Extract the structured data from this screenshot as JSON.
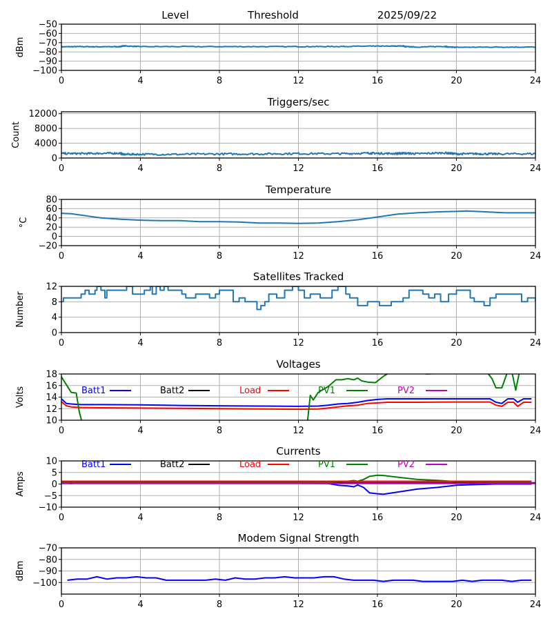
{
  "header": {
    "level_label": "Level",
    "threshold_label": "Threshold",
    "date": "2025/09/22"
  },
  "chart_data": [
    {
      "id": "level",
      "type": "line",
      "title": "",
      "ylabel": "dBm",
      "xlim": [
        0,
        24
      ],
      "ylim": [
        -100,
        -50
      ],
      "xticks": [
        0,
        4,
        8,
        12,
        16,
        20,
        24
      ],
      "yticks": [
        -100,
        -90,
        -80,
        -70,
        -60,
        -50
      ],
      "grid": true,
      "series": [
        {
          "name": "Level",
          "color": "#1f77b4",
          "noise": 0.4,
          "x": [
            0,
            1,
            2,
            3,
            3.1,
            4,
            8,
            12,
            14,
            15.5,
            16.5,
            17.3,
            17.4,
            18,
            19.4,
            19.6,
            20,
            22,
            24
          ],
          "y": [
            -74.5,
            -74.3,
            -74.5,
            -74.3,
            -73.5,
            -74.3,
            -74.3,
            -74.3,
            -74.2,
            -73.8,
            -73.8,
            -73.5,
            -74.3,
            -74.8,
            -74,
            -74.8,
            -75,
            -74.8,
            -74.8
          ]
        }
      ]
    },
    {
      "id": "triggers",
      "type": "line",
      "title": "Triggers/sec",
      "ylabel": "Count",
      "xlim": [
        0,
        24
      ],
      "ylim": [
        0,
        12500
      ],
      "xticks": [
        0,
        4,
        8,
        12,
        16,
        20,
        24
      ],
      "yticks": [
        0,
        4000,
        8000,
        12000
      ],
      "grid": true,
      "series": [
        {
          "name": "Triggers",
          "color": "#1f77b4",
          "noise": 250,
          "x": [
            0,
            1,
            2,
            3,
            3.1,
            4,
            6,
            8,
            10,
            12,
            14,
            15.5,
            16,
            17,
            17.3,
            18,
            19.4,
            20,
            21,
            22,
            24
          ],
          "y": [
            1200,
            1200,
            1250,
            1300,
            1000,
            1000,
            1000,
            1100,
            1100,
            1200,
            1150,
            1300,
            1250,
            1200,
            1300,
            1150,
            1400,
            1100,
            1150,
            1100,
            1150
          ]
        }
      ]
    },
    {
      "id": "temperature",
      "type": "line",
      "title": "Temperature",
      "ylabel": "°C",
      "xlim": [
        0,
        24
      ],
      "ylim": [
        -20,
        80
      ],
      "xticks": [
        0,
        4,
        8,
        12,
        16,
        20,
        24
      ],
      "yticks": [
        -20,
        0,
        20,
        40,
        60,
        80
      ],
      "grid": true,
      "series": [
        {
          "name": "Temperature",
          "color": "#1f77b4",
          "noise": 0,
          "x": [
            0,
            0.5,
            1,
            2,
            3,
            4,
            5,
            6,
            7,
            8,
            9,
            10,
            11,
            12,
            13,
            14,
            15,
            16,
            17,
            18,
            19,
            20,
            20.5,
            21,
            22,
            22.5,
            24
          ],
          "y": [
            50,
            49,
            46,
            40,
            37,
            35,
            34,
            34,
            32,
            32,
            31,
            29,
            29,
            28,
            29,
            32,
            36,
            42,
            48,
            51,
            53,
            54,
            55,
            54,
            52,
            51,
            51
          ]
        }
      ]
    },
    {
      "id": "satellites",
      "type": "line",
      "title": "Satellites Tracked",
      "ylabel": "Number",
      "xlim": [
        0,
        24
      ],
      "ylim": [
        0,
        12
      ],
      "xticks": [
        0,
        4,
        8,
        12,
        16,
        20,
        24
      ],
      "yticks": [
        0,
        4,
        8,
        12
      ],
      "grid": true,
      "step": true,
      "series": [
        {
          "name": "Satellites",
          "color": "#1f77b4",
          "noise": 0,
          "x": [
            0,
            0.1,
            0.9,
            1.0,
            1.2,
            1.4,
            1.7,
            1.8,
            2.0,
            2.2,
            2.3,
            3.1,
            3.3,
            3.6,
            4.2,
            4.5,
            4.6,
            4.8,
            5.0,
            5.2,
            5.4,
            6.1,
            6.3,
            6.8,
            7.5,
            7.8,
            8.0,
            8.6,
            8.7,
            9.0,
            9.3,
            9.8,
            9.9,
            10.1,
            10.3,
            10.5,
            10.9,
            11.3,
            11.7,
            12.0,
            12.3,
            12.6,
            13.1,
            13.7,
            14.0,
            14.4,
            14.6,
            15.0,
            15.5,
            15.9,
            16.1,
            16.7,
            17.3,
            17.6,
            18.0,
            18.3,
            18.6,
            18.9,
            19.2,
            19.6,
            20.0,
            20.7,
            20.9,
            21.4,
            21.7,
            22.0,
            23.3,
            23.6,
            24.0
          ],
          "y": [
            8,
            9,
            9,
            10,
            11,
            10,
            11,
            12,
            11,
            9,
            11,
            11,
            12,
            10,
            11,
            12,
            10,
            12,
            11,
            12,
            11,
            10,
            9,
            10,
            9,
            10,
            11,
            11,
            8,
            9,
            8,
            8,
            6,
            7,
            8,
            10,
            9,
            11,
            12,
            11,
            9,
            10,
            9,
            11,
            12,
            10,
            9,
            7,
            8,
            8,
            7,
            8,
            9,
            11,
            11,
            10,
            9,
            10,
            8,
            10,
            11,
            9,
            8,
            7,
            9,
            10,
            8,
            9,
            8
          ]
        }
      ]
    },
    {
      "id": "voltages",
      "type": "line",
      "title": "Voltages",
      "ylabel": "Volts",
      "xlim": [
        0,
        24
      ],
      "ylim": [
        10,
        18
      ],
      "xticks": [
        0,
        4,
        8,
        12,
        16,
        20,
        24
      ],
      "yticks": [
        10,
        12,
        14,
        16,
        18
      ],
      "grid": true,
      "legend": [
        {
          "name": "Batt1",
          "color": "#0000ff"
        },
        {
          "name": "Batt2",
          "color": "#000000"
        },
        {
          "name": "Load",
          "color": "#ff0000"
        },
        {
          "name": "PV1",
          "color": "#008000"
        },
        {
          "name": "PV2",
          "color": "#bf00bf"
        }
      ],
      "series": [
        {
          "name": "Batt1",
          "color": "#0000ff",
          "x": [
            0,
            0.25,
            0.5,
            1,
            2,
            4,
            6,
            8,
            10,
            12,
            13,
            13.5,
            14,
            14.5,
            15,
            15.5,
            16,
            16.5,
            18,
            20,
            21.7,
            22,
            22.3,
            22.6,
            22.9,
            23.1,
            23.4,
            23.8
          ],
          "y": [
            13.7,
            12.9,
            12.8,
            12.7,
            12.7,
            12.65,
            12.55,
            12.5,
            12.45,
            12.4,
            12.45,
            12.6,
            12.8,
            12.9,
            13.1,
            13.4,
            13.6,
            13.7,
            13.7,
            13.7,
            13.7,
            13.1,
            12.9,
            13.7,
            13.7,
            13.1,
            13.7,
            13.7
          ]
        },
        {
          "name": "Load",
          "color": "#ff0000",
          "x": [
            0,
            0.25,
            0.5,
            1,
            2,
            4,
            6,
            8,
            10,
            12,
            13,
            13.5,
            14,
            14.5,
            15,
            15.5,
            16,
            16.5,
            18,
            20,
            21.7,
            22,
            22.3,
            22.6,
            22.9,
            23.1,
            23.4,
            23.8
          ],
          "y": [
            13.2,
            12.5,
            12.3,
            12.2,
            12.15,
            12.1,
            12.05,
            12,
            11.95,
            11.9,
            11.95,
            12.1,
            12.3,
            12.5,
            12.6,
            12.9,
            13.0,
            13.1,
            13.1,
            13.15,
            13.15,
            12.6,
            12.4,
            13.1,
            13.1,
            12.4,
            13.1,
            13.1
          ]
        },
        {
          "name": "PV1",
          "color": "#008000",
          "x": [
            0,
            0.5,
            0.75,
            0.9,
            1.05,
            1.2,
            12.2,
            12.45,
            12.6,
            12.75,
            13.0,
            13.5,
            13.9,
            14.2,
            14.5,
            14.8,
            15.0,
            15.2,
            15.5,
            15.9,
            16.3,
            16.6,
            17.0,
            18.0,
            18.5,
            21.5,
            21.8,
            22.0,
            22.3,
            22.6,
            22.8,
            23.0,
            23.2,
            23.4
          ],
          "y": [
            17.5,
            14.8,
            14.7,
            11.5,
            9.5,
            9.5,
            9.5,
            9.5,
            14.3,
            13.5,
            14.8,
            15.8,
            17.0,
            17.0,
            17.2,
            17.0,
            17.3,
            16.8,
            16.6,
            16.5,
            17.6,
            18.2,
            18.5,
            18.5,
            18.0,
            18.5,
            17.2,
            15.6,
            15.6,
            18.5,
            18.5,
            15.2,
            18.5,
            18.5
          ]
        }
      ]
    },
    {
      "id": "currents",
      "type": "line",
      "title": "Currents",
      "ylabel": "Amps",
      "xlim": [
        0,
        24
      ],
      "ylim": [
        -10,
        10
      ],
      "xticks": [
        0,
        4,
        8,
        12,
        16,
        20,
        24
      ],
      "yticks": [
        -10,
        -5,
        0,
        5,
        10
      ],
      "grid": true,
      "legend": [
        {
          "name": "Batt1",
          "color": "#0000ff"
        },
        {
          "name": "Batt2",
          "color": "#000000"
        },
        {
          "name": "Load",
          "color": "#ff0000"
        },
        {
          "name": "PV1",
          "color": "#008000"
        },
        {
          "name": "PV2",
          "color": "#bf00bf"
        }
      ],
      "series": [
        {
          "name": "Batt1",
          "color": "#0000ff",
          "x": [
            0,
            1,
            4,
            8,
            12,
            13.5,
            14,
            14.5,
            14.8,
            15.0,
            15.3,
            15.6,
            16.0,
            16.3,
            17.0,
            18.0,
            19.0,
            20.0,
            21.0,
            22.0,
            23.0,
            23.8
          ],
          "y": [
            0.3,
            0.3,
            0.3,
            0.3,
            0.3,
            0.2,
            -0.5,
            -0.8,
            -1.2,
            -0.4,
            -1.5,
            -3.8,
            -4.2,
            -4.4,
            -3.5,
            -2.2,
            -1.5,
            -0.5,
            -0.2,
            0,
            0,
            0
          ]
        },
        {
          "name": "Batt2",
          "color": "#000000",
          "x": [
            0,
            0.5,
            1,
            24
          ],
          "y": [
            0.5,
            0.2,
            0.5,
            0.5
          ]
        },
        {
          "name": "PV1",
          "color": "#008000",
          "x": [
            0,
            4,
            8,
            12,
            13.5,
            14,
            14.5,
            14.8,
            15.0,
            15.3,
            15.6,
            16.0,
            16.3,
            17.0,
            18.0,
            19.0,
            20.0,
            22.0,
            23.8
          ],
          "y": [
            0.8,
            0.8,
            0.8,
            0.8,
            0.8,
            1.0,
            1.2,
            1.5,
            1.2,
            2.0,
            3.3,
            3.8,
            3.7,
            3.0,
            2.0,
            1.6,
            1.0,
            0.9,
            0.9
          ]
        },
        {
          "name": "PV2",
          "color": "#bf00bf",
          "x": [
            0,
            24
          ],
          "y": [
            0.3,
            0.3
          ]
        },
        {
          "name": "Load",
          "color": "#ff0000",
          "x": [
            0,
            4,
            8,
            12,
            16,
            20,
            23.8
          ],
          "y": [
            1.2,
            1.2,
            1.2,
            1.2,
            1.2,
            1.2,
            1.2
          ]
        }
      ]
    },
    {
      "id": "modem",
      "type": "line",
      "title": "Modem Signal Strength",
      "ylabel": "dBm",
      "xlim": [
        0,
        24
      ],
      "ylim": [
        -110,
        -70
      ],
      "xticks": [
        0,
        4,
        8,
        12,
        16,
        20,
        24
      ],
      "yticks": [
        -100,
        -90,
        -80,
        -70
      ],
      "grid": true,
      "series": [
        {
          "name": "Modem",
          "color": "#0000ff",
          "x": [
            0.3,
            0.8,
            1.3,
            1.8,
            2.3,
            2.8,
            3.3,
            3.8,
            4.3,
            4.8,
            5.3,
            5.8,
            6.3,
            6.8,
            7.3,
            7.8,
            8.3,
            8.8,
            9.3,
            9.8,
            10.3,
            10.8,
            11.3,
            11.8,
            12.3,
            12.8,
            13.3,
            13.8,
            14.3,
            14.8,
            15.3,
            15.8,
            16.3,
            16.8,
            17.3,
            17.8,
            18.3,
            18.8,
            19.3,
            19.8,
            20.3,
            20.8,
            21.3,
            21.8,
            22.3,
            22.8,
            23.3,
            23.8
          ],
          "y": [
            -98,
            -97,
            -97,
            -95,
            -97,
            -96,
            -96,
            -95,
            -96,
            -96,
            -98,
            -98,
            -98,
            -98,
            -98,
            -97,
            -98,
            -96,
            -97,
            -97,
            -96,
            -96,
            -95,
            -96,
            -96,
            -96,
            -95,
            -95,
            -97,
            -98,
            -98,
            -98,
            -99,
            -98,
            -98,
            -98,
            -99,
            -99,
            -99,
            -99,
            -98,
            -99,
            -98,
            -98,
            -98,
            -99,
            -98,
            -98
          ]
        }
      ]
    }
  ]
}
